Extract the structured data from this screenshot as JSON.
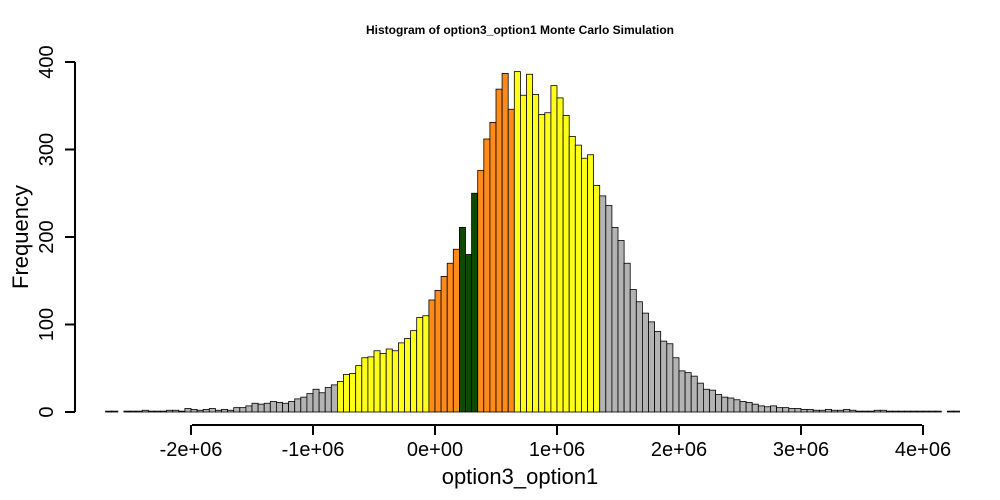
{
  "chart_data": {
    "type": "bar",
    "title": "Histogram of  option3_option1  Monte Carlo Simulation",
    "xlabel": "option3_option1",
    "ylabel": "Frequency",
    "xlim": [
      -2700000,
      4100000
    ],
    "ylim": [
      0,
      400
    ],
    "bin_width": 50000,
    "bin_start": -2700000,
    "x_ticks": [
      -2000000,
      -1000000,
      0,
      1000000,
      2000000,
      3000000,
      4000000
    ],
    "x_tick_labels": [
      "-2e+06",
      "-1e+06",
      "0e+00",
      "1e+06",
      "2e+06",
      "3e+06",
      "4e+06"
    ],
    "y_ticks": [
      0,
      100,
      200,
      300,
      400
    ],
    "y_tick_labels": [
      "0",
      "100",
      "200",
      "300",
      "400"
    ],
    "grid": false,
    "legend": "none",
    "colors": {
      "outer": "#b3b3b3",
      "yellow": "#ffff1a",
      "orange": "#ff8c1a",
      "center": "#0d4a00"
    },
    "color_bands": [
      {
        "color": "outer",
        "from": -2700000,
        "to": -800000
      },
      {
        "color": "yellow",
        "from": -800000,
        "to": -50000
      },
      {
        "color": "orange",
        "from": -50000,
        "to": 200000
      },
      {
        "color": "center",
        "from": 200000,
        "to": 350000
      },
      {
        "color": "orange",
        "from": 350000,
        "to": 650000
      },
      {
        "color": "yellow",
        "from": 650000,
        "to": 1350000
      },
      {
        "color": "outer",
        "from": 1350000,
        "to": 4100000
      }
    ],
    "values": [
      1,
      1,
      0,
      1,
      1,
      1,
      2,
      1,
      1,
      1,
      2,
      2,
      1,
      4,
      3,
      2,
      3,
      4,
      2,
      3,
      2,
      5,
      5,
      7,
      10,
      9,
      10,
      12,
      11,
      10,
      12,
      15,
      17,
      21,
      26,
      22,
      28,
      31,
      35,
      43,
      44,
      53,
      62,
      63,
      70,
      67,
      72,
      70,
      79,
      84,
      93,
      108,
      110,
      128,
      139,
      155,
      170,
      186,
      211,
      180,
      250,
      276,
      312,
      331,
      369,
      387,
      346,
      389,
      362,
      386,
      363,
      340,
      342,
      373,
      359,
      339,
      315,
      305,
      290,
      294,
      259,
      247,
      236,
      211,
      196,
      170,
      140,
      126,
      113,
      103,
      92,
      81,
      78,
      62,
      47,
      45,
      41,
      33,
      26,
      25,
      20,
      17,
      16,
      14,
      12,
      11,
      9,
      7,
      6,
      7,
      5,
      5,
      4,
      4,
      3,
      3,
      2,
      2,
      3,
      2,
      2,
      3,
      2,
      1,
      1,
      1,
      2,
      2,
      1,
      1,
      1,
      1,
      1,
      1,
      1,
      1,
      1,
      0,
      1,
      1
    ]
  }
}
